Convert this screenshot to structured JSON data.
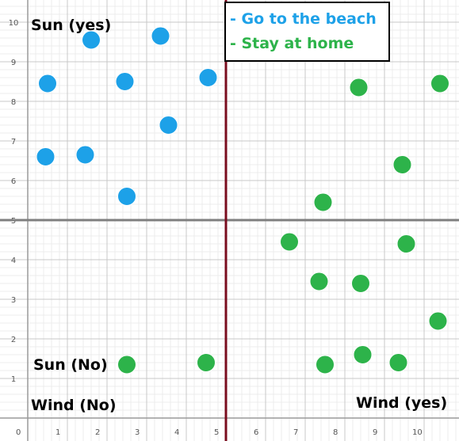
{
  "chart_data": {
    "type": "scatter",
    "xlim": [
      0,
      10.9
    ],
    "ylim": [
      0,
      10.4
    ],
    "x_ticks": [
      0,
      1,
      2,
      3,
      4,
      5,
      6,
      7,
      8,
      9,
      10
    ],
    "y_ticks": [
      1,
      2,
      3,
      4,
      5,
      6,
      7,
      8,
      9,
      10
    ],
    "grid": true,
    "divider_x": 5,
    "divider_y": 5,
    "legend_position": "top-center",
    "series": [
      {
        "name": "- Go to the beach",
        "color": "#1da1e8",
        "points": [
          {
            "x": 0.5,
            "y": 8.45
          },
          {
            "x": 1.6,
            "y": 9.55
          },
          {
            "x": 2.45,
            "y": 8.5
          },
          {
            "x": 3.35,
            "y": 9.65
          },
          {
            "x": 4.55,
            "y": 8.6
          },
          {
            "x": 3.55,
            "y": 7.4
          },
          {
            "x": 0.45,
            "y": 6.6
          },
          {
            "x": 1.45,
            "y": 6.65
          },
          {
            "x": 2.5,
            "y": 5.6
          }
        ]
      },
      {
        "name": "- Stay at home",
        "color": "#2db34a",
        "points": [
          {
            "x": 8.35,
            "y": 8.35
          },
          {
            "x": 10.4,
            "y": 8.45
          },
          {
            "x": 9.45,
            "y": 6.4
          },
          {
            "x": 7.45,
            "y": 5.45
          },
          {
            "x": 6.6,
            "y": 4.45
          },
          {
            "x": 9.55,
            "y": 4.4
          },
          {
            "x": 7.35,
            "y": 3.45
          },
          {
            "x": 8.4,
            "y": 3.4
          },
          {
            "x": 10.35,
            "y": 2.45
          },
          {
            "x": 2.5,
            "y": 1.35
          },
          {
            "x": 4.5,
            "y": 1.4
          },
          {
            "x": 7.5,
            "y": 1.35
          },
          {
            "x": 8.45,
            "y": 1.6
          },
          {
            "x": 9.35,
            "y": 1.4
          }
        ]
      }
    ],
    "annotations": {
      "sun_yes": "Sun (yes)",
      "sun_no": "Sun (No)",
      "wind_no": "Wind (No)",
      "wind_yes": "Wind (yes)"
    }
  }
}
